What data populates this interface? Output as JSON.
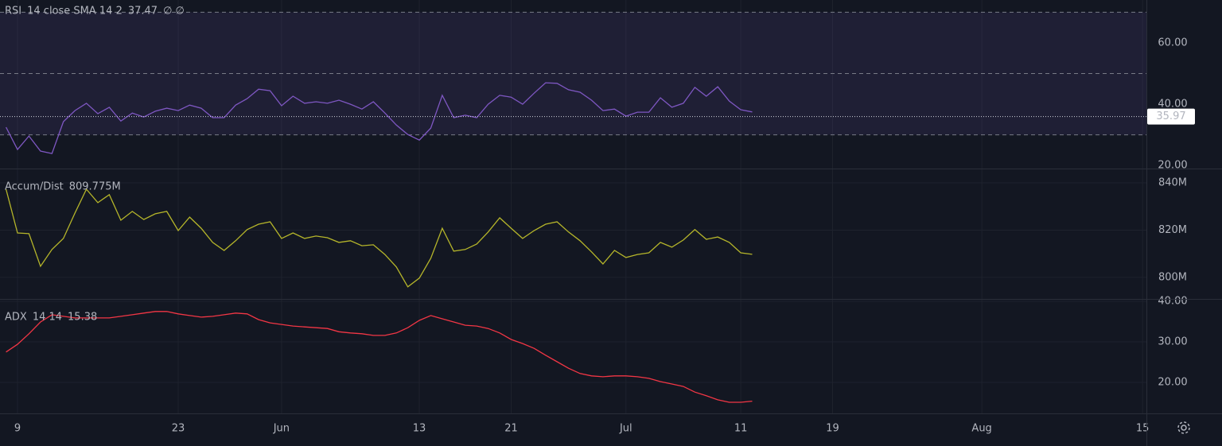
{
  "chart_data": [
    {
      "type": "line",
      "title": "RSI",
      "subtitle": "14 close SMA 14 2",
      "extras": "∅ ∅",
      "series": [
        {
          "name": "RSI",
          "color": "#7e57c2",
          "values": [
            32.5,
            25.2,
            29.6,
            24.7,
            23.9,
            34.3,
            37.9,
            40.3,
            36.9,
            39.0,
            34.5,
            37.1,
            35.8,
            37.7,
            38.7,
            37.9,
            39.7,
            38.7,
            35.6,
            35.6,
            39.7,
            41.8,
            44.9,
            44.4,
            39.5,
            42.6,
            40.3,
            40.8,
            40.3,
            41.3,
            40.0,
            38.4,
            40.8,
            37.1,
            33.2,
            30.1,
            28.3,
            32.2,
            42.9,
            35.6,
            36.4,
            35.6,
            40.0,
            42.9,
            42.3,
            40.0,
            43.6,
            47.0,
            46.8,
            44.7,
            43.9,
            41.3,
            37.9,
            38.4,
            36.1,
            37.4,
            37.4,
            42.1,
            39.0,
            40.3,
            45.5,
            42.6,
            45.7,
            41.0,
            38.2,
            37.47,
            null,
            null,
            null,
            null,
            null,
            null,
            null,
            null,
            null,
            null,
            null,
            null,
            null,
            null,
            null,
            null,
            null,
            null,
            null,
            null,
            null,
            null,
            null,
            null,
            null,
            null,
            null,
            null,
            null,
            null,
            null,
            null,
            null,
            null
          ]
        }
      ],
      "band": [
        30,
        70
      ],
      "band_color": "#7e57c2",
      "hlines": [
        70,
        50,
        30
      ],
      "reference_line": 35.97,
      "ylim": [
        19,
        74
      ],
      "yticks": [
        {
          "value": 20,
          "label": "20.00"
        },
        {
          "value": 40,
          "label": "40.00"
        },
        {
          "value": 60,
          "label": "60.00"
        }
      ],
      "grid": false
    },
    {
      "type": "line",
      "title": "Accum/Dist",
      "last_value_label": "809.775M",
      "series": [
        {
          "name": "Accum/Dist",
          "color": "#b5b52a",
          "values": [
            837.3,
            818.8,
            818.5,
            804.7,
            811.8,
            816.5,
            827.2,
            837.3,
            831.6,
            835.0,
            824.2,
            827.9,
            824.5,
            826.9,
            827.9,
            819.8,
            825.5,
            820.8,
            814.8,
            811.4,
            815.5,
            820.2,
            822.5,
            823.5,
            816.5,
            818.8,
            816.5,
            817.5,
            816.8,
            814.8,
            815.5,
            813.4,
            813.8,
            809.7,
            804.4,
            796.0,
            799.7,
            808.1,
            820.8,
            811.1,
            811.8,
            814.1,
            819.2,
            825.2,
            820.8,
            816.5,
            819.8,
            822.5,
            823.5,
            819.2,
            815.5,
            810.8,
            805.7,
            811.4,
            808.4,
            809.7,
            810.4,
            814.8,
            812.8,
            815.8,
            820.2,
            816.1,
            817.1,
            814.8,
            810.4,
            809.775,
            null,
            null,
            null,
            null,
            null,
            null,
            null,
            null,
            null,
            null,
            null,
            null,
            null,
            null,
            null,
            null,
            null,
            null,
            null,
            null,
            null,
            null,
            null,
            null,
            null,
            null,
            null,
            null,
            null,
            null,
            null,
            null,
            null,
            null
          ]
        }
      ],
      "ylim": [
        790.9,
        845.7
      ],
      "yticks": [
        {
          "value": 800,
          "label": "800M"
        },
        {
          "value": 820,
          "label": "820M"
        },
        {
          "value": 840,
          "label": "840M"
        }
      ],
      "grid": true
    },
    {
      "type": "line",
      "title": "ADX",
      "subtitle": "14 14",
      "categories": [
        null,
        "9",
        null,
        null,
        null,
        null,
        null,
        null,
        null,
        null,
        null,
        null,
        null,
        null,
        null,
        "23",
        null,
        null,
        null,
        null,
        null,
        null,
        null,
        null,
        "Jun",
        null,
        null,
        null,
        null,
        null,
        null,
        null,
        null,
        null,
        null,
        null,
        "13",
        null,
        null,
        null,
        null,
        null,
        null,
        null,
        "21",
        null,
        null,
        null,
        null,
        null,
        null,
        null,
        null,
        null,
        "Jul",
        null,
        null,
        null,
        null,
        null,
        null,
        null,
        null,
        null,
        "11",
        null,
        null,
        null,
        null,
        null,
        null,
        null,
        "19",
        null,
        null,
        null,
        null,
        null,
        null,
        null,
        null,
        null,
        null,
        null,
        null,
        "Aug",
        null,
        null,
        null,
        null,
        null,
        null,
        null,
        null,
        null,
        null,
        null,
        null,
        null,
        "15"
      ],
      "series": [
        {
          "name": "ADX",
          "color": "#f23645",
          "values": [
            27.5,
            29.4,
            32.0,
            34.9,
            36.7,
            36.3,
            35.9,
            35.9,
            35.9,
            35.9,
            36.3,
            36.7,
            37.1,
            37.5,
            37.5,
            36.9,
            36.5,
            36.1,
            36.3,
            36.7,
            37.1,
            36.9,
            35.5,
            34.7,
            34.3,
            33.9,
            33.7,
            33.5,
            33.3,
            32.5,
            32.2,
            32.0,
            31.6,
            31.6,
            32.2,
            33.5,
            35.3,
            36.5,
            35.7,
            34.9,
            34.1,
            33.9,
            33.3,
            32.2,
            30.6,
            29.6,
            28.4,
            26.7,
            25.1,
            23.5,
            22.2,
            21.6,
            21.4,
            21.6,
            21.6,
            21.4,
            21.0,
            20.2,
            19.6,
            19.0,
            17.6,
            16.7,
            15.7,
            15.1,
            15.1,
            15.38,
            null,
            null,
            null,
            null,
            null,
            null,
            null,
            null,
            null,
            null,
            null,
            null,
            null,
            null,
            null,
            null,
            null,
            null,
            null,
            null,
            null,
            null,
            null,
            null,
            null,
            null,
            null,
            null,
            null,
            null,
            null,
            null,
            null,
            null
          ]
        }
      ],
      "ylim": [
        12.35,
        40.4
      ],
      "yticks": [
        {
          "value": 20,
          "label": "20.00"
        },
        {
          "value": 30,
          "label": "30.00"
        },
        {
          "value": 40,
          "label": "40.00"
        }
      ],
      "grid": true
    }
  ]
}
